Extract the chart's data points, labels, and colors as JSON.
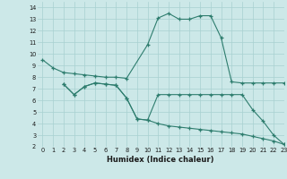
{
  "title": "",
  "xlabel": "Humidex (Indice chaleur)",
  "background_color": "#cce8e8",
  "line_color": "#2e7d6e",
  "xlim": [
    -0.5,
    23
  ],
  "ylim": [
    2,
    14.5
  ],
  "xticks": [
    0,
    1,
    2,
    3,
    4,
    5,
    6,
    7,
    8,
    9,
    10,
    11,
    12,
    13,
    14,
    15,
    16,
    17,
    18,
    19,
    20,
    21,
    22,
    23
  ],
  "yticks": [
    2,
    3,
    4,
    5,
    6,
    7,
    8,
    9,
    10,
    11,
    12,
    13,
    14
  ],
  "series": [
    {
      "x": [
        0,
        1,
        2,
        3,
        4,
        5,
        6,
        7,
        8,
        10,
        11,
        12,
        13,
        14,
        15,
        16,
        17,
        18,
        19,
        20,
        21,
        22,
        23
      ],
      "y": [
        9.5,
        8.8,
        8.4,
        8.3,
        8.2,
        8.1,
        8.0,
        8.0,
        7.9,
        10.8,
        13.1,
        13.5,
        13.0,
        13.0,
        13.3,
        13.3,
        11.4,
        7.6,
        7.5,
        7.5,
        7.5,
        7.5,
        7.5
      ]
    },
    {
      "x": [
        2,
        3,
        4,
        5,
        6,
        7,
        8,
        9,
        10,
        11,
        12,
        13,
        14,
        15,
        16,
        17,
        18,
        19,
        20,
        21,
        22,
        23
      ],
      "y": [
        7.4,
        6.5,
        7.2,
        7.5,
        7.4,
        7.3,
        6.2,
        4.4,
        4.3,
        6.5,
        6.5,
        6.5,
        6.5,
        6.5,
        6.5,
        6.5,
        6.5,
        6.5,
        5.2,
        4.2,
        3.0,
        2.2
      ]
    },
    {
      "x": [
        2,
        3,
        4,
        5,
        6,
        7,
        8,
        9,
        10,
        11,
        12,
        13,
        14,
        15,
        16,
        17,
        18,
        19,
        20,
        21,
        22,
        23
      ],
      "y": [
        7.4,
        6.5,
        7.2,
        7.5,
        7.4,
        7.3,
        6.2,
        4.4,
        4.3,
        4.0,
        3.8,
        3.7,
        3.6,
        3.5,
        3.4,
        3.3,
        3.2,
        3.1,
        2.9,
        2.7,
        2.5,
        2.2
      ]
    }
  ]
}
